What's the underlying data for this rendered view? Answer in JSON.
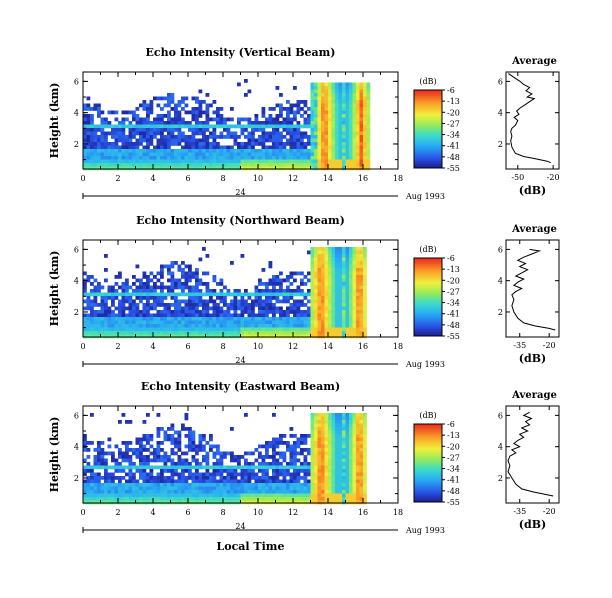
{
  "chart_data": [
    {
      "type": "heatmap",
      "title": "Echo Intensity (Vertical Beam)",
      "ylabel": "Height (km)",
      "x_ticks": [
        "0",
        "2",
        "4",
        "6",
        "8",
        "10",
        "12",
        "14",
        "16",
        "18"
      ],
      "xlim": [
        0,
        18
      ],
      "y_ticks": [
        "2",
        "4",
        "6"
      ],
      "ylim": [
        0.4,
        6.6
      ],
      "date_marker": "24",
      "date_text": "Aug 1993",
      "colorbar": {
        "unit": "(dB)",
        "ticks": [
          "-6",
          "-13",
          "-20",
          "-27",
          "-34",
          "-41",
          "-48",
          "-55"
        ]
      },
      "heat_field": {
        "clear_echo_top_km": 4.7,
        "layer_km": [
          3.05,
          3.25
        ],
        "storm_cores": [
          {
            "x": 13.8,
            "w": 0.9
          },
          {
            "x": 15.9,
            "w": 0.8
          }
        ],
        "storm_light": [
          [
            13.4,
            14.7
          ],
          [
            14.9,
            16.3
          ]
        ],
        "storm_end_hour": 16.3,
        "storm_top_km": 6.0
      },
      "average_profile": {
        "title": "Average",
        "xlabel": "(dB)",
        "x_ticks": [
          "-50",
          "-20"
        ],
        "xlim": [
          -60,
          -15
        ],
        "ylim": [
          0.4,
          6.6
        ],
        "y_ticks": [
          "2",
          "4",
          "6"
        ],
        "points": [
          [
            -58,
            6.5
          ],
          [
            -52,
            6.2
          ],
          [
            -48,
            6.0
          ],
          [
            -45,
            5.8
          ],
          [
            -40,
            5.6
          ],
          [
            -43,
            5.4
          ],
          [
            -38,
            5.2
          ],
          [
            -42,
            5.0
          ],
          [
            -36,
            4.9
          ],
          [
            -40,
            4.7
          ],
          [
            -44,
            4.5
          ],
          [
            -48,
            4.3
          ],
          [
            -51,
            4.1
          ],
          [
            -49,
            3.9
          ],
          [
            -53,
            3.7
          ],
          [
            -50,
            3.5
          ],
          [
            -52,
            3.2
          ],
          [
            -55,
            3.0
          ],
          [
            -56,
            2.8
          ],
          [
            -55,
            2.5
          ],
          [
            -56,
            2.2
          ],
          [
            -55,
            1.8
          ],
          [
            -52,
            1.4
          ],
          [
            -45,
            1.2
          ],
          [
            -35,
            1.05
          ],
          [
            -25,
            0.9
          ],
          [
            -22,
            0.8
          ]
        ]
      }
    },
    {
      "type": "heatmap",
      "title": "Echo Intensity (Northward Beam)",
      "ylabel": "Height (km)",
      "x_ticks": [
        "0",
        "2",
        "4",
        "6",
        "8",
        "10",
        "12",
        "14",
        "16",
        "18"
      ],
      "xlim": [
        0,
        18
      ],
      "y_ticks": [
        "2",
        "4",
        "6"
      ],
      "ylim": [
        0.4,
        6.6
      ],
      "date_marker": "24",
      "date_text": "Aug 1993",
      "colorbar": {
        "unit": "(dB)",
        "ticks": [
          "-6",
          "-13",
          "-20",
          "-27",
          "-34",
          "-41",
          "-48",
          "-55"
        ]
      },
      "heat_field": {
        "clear_echo_top_km": 4.6,
        "layer_km": [
          3.0,
          3.2
        ],
        "storm_cores": [
          {
            "x": 13.6,
            "w": 1.0
          },
          {
            "x": 15.8,
            "w": 0.8
          }
        ],
        "storm_light": [
          [
            13.0,
            14.7
          ],
          [
            14.9,
            16.2
          ]
        ],
        "storm_end_hour": 16.2,
        "storm_top_km": 6.1
      },
      "average_profile": {
        "title": "Average",
        "xlabel": "(dB)",
        "x_ticks": [
          "-35",
          "-20"
        ],
        "xlim": [
          -42,
          -15
        ],
        "ylim": [
          0.4,
          6.6
        ],
        "y_ticks": [
          "2",
          "4",
          "6"
        ],
        "points": [
          [
            -30,
            6.0
          ],
          [
            -25,
            5.9
          ],
          [
            -29,
            5.7
          ],
          [
            -33,
            5.5
          ],
          [
            -36,
            5.3
          ],
          [
            -32,
            5.1
          ],
          [
            -35,
            4.9
          ],
          [
            -31,
            4.7
          ],
          [
            -34,
            4.5
          ],
          [
            -37,
            4.3
          ],
          [
            -33,
            4.1
          ],
          [
            -36,
            3.9
          ],
          [
            -38,
            3.7
          ],
          [
            -34,
            3.5
          ],
          [
            -37,
            3.3
          ],
          [
            -39,
            3.1
          ],
          [
            -38,
            2.8
          ],
          [
            -39,
            2.4
          ],
          [
            -38,
            2.0
          ],
          [
            -36,
            1.6
          ],
          [
            -33,
            1.3
          ],
          [
            -27,
            1.1
          ],
          [
            -20,
            0.95
          ],
          [
            -17,
            0.85
          ]
        ]
      }
    },
    {
      "type": "heatmap",
      "title": "Echo Intensity (Eastward Beam)",
      "ylabel": "Height (km)",
      "x_ticks": [
        "0",
        "2",
        "4",
        "6",
        "8",
        "10",
        "12",
        "14",
        "16",
        "18"
      ],
      "xlim": [
        0,
        18
      ],
      "y_ticks": [
        "2",
        "4",
        "6"
      ],
      "ylim": [
        0.4,
        6.6
      ],
      "date_marker": "24",
      "date_text": "Aug 1993",
      "xlabel": "Local Time",
      "colorbar": {
        "unit": "(dB)",
        "ticks": [
          "-6",
          "-13",
          "-20",
          "-27",
          "-34",
          "-41",
          "-48",
          "-55"
        ]
      },
      "heat_field": {
        "clear_echo_top_km": 4.8,
        "layer_km": [
          2.65,
          2.85
        ],
        "storm_cores": [
          {
            "x": 13.6,
            "w": 1.0
          },
          {
            "x": 15.8,
            "w": 0.8
          }
        ],
        "storm_light": [
          [
            13.0,
            14.7
          ],
          [
            14.9,
            16.2
          ]
        ],
        "storm_end_hour": 16.2,
        "storm_top_km": 6.1
      },
      "average_profile": {
        "title": "Average",
        "xlabel": "(dB)",
        "x_ticks": [
          "-35",
          "-20"
        ],
        "xlim": [
          -42,
          -15
        ],
        "ylim": [
          0.4,
          6.6
        ],
        "y_ticks": [
          "2",
          "4",
          "6"
        ],
        "points": [
          [
            -30,
            6.2
          ],
          [
            -33,
            6.0
          ],
          [
            -29,
            5.8
          ],
          [
            -32,
            5.6
          ],
          [
            -30,
            5.4
          ],
          [
            -34,
            5.2
          ],
          [
            -31,
            5.0
          ],
          [
            -35,
            4.8
          ],
          [
            -33,
            4.6
          ],
          [
            -36,
            4.4
          ],
          [
            -38,
            4.2
          ],
          [
            -35,
            4.0
          ],
          [
            -39,
            3.8
          ],
          [
            -37,
            3.6
          ],
          [
            -40,
            3.4
          ],
          [
            -41,
            3.1
          ],
          [
            -40,
            2.8
          ],
          [
            -41,
            2.4
          ],
          [
            -39,
            2.0
          ],
          [
            -37,
            1.6
          ],
          [
            -34,
            1.3
          ],
          [
            -28,
            1.1
          ],
          [
            -22,
            0.95
          ],
          [
            -18,
            0.85
          ]
        ]
      }
    }
  ]
}
